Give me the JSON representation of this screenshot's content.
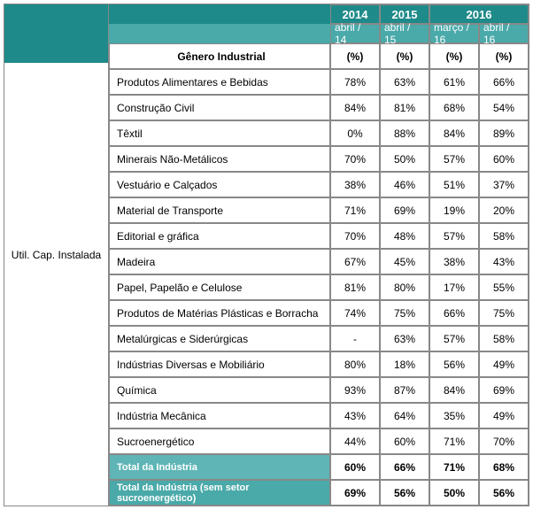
{
  "colors": {
    "teal_dark": "#1f8a8a",
    "teal_med": "#4aa9a9",
    "teal_light": "#5fb5b5",
    "border": "#888888",
    "bg": "#ffffff"
  },
  "side_label": "Util. Cap. Instalada",
  "years": {
    "y2014": "2014",
    "y2015": "2015",
    "y2016": "2016"
  },
  "months": {
    "m1": "abril / 14",
    "m2": "abril / 15",
    "m3": "março / 16",
    "m4": "abril / 16"
  },
  "header_row": {
    "label": "Gênero Industrial",
    "unit": "(%)"
  },
  "rows": [
    {
      "label": "Produtos Alimentares e Bebidas",
      "v1": "78%",
      "v2": "63%",
      "v3": "61%",
      "v4": "66%"
    },
    {
      "label": "Construção Civil",
      "v1": "84%",
      "v2": "81%",
      "v3": "68%",
      "v4": "54%"
    },
    {
      "label": "Têxtil",
      "v1": "0%",
      "v2": "88%",
      "v3": "84%",
      "v4": "89%"
    },
    {
      "label": "Minerais Não-Metálicos",
      "v1": "70%",
      "v2": "50%",
      "v3": "57%",
      "v4": "60%"
    },
    {
      "label": "Vestuário e Calçados",
      "v1": "38%",
      "v2": "46%",
      "v3": "51%",
      "v4": "37%"
    },
    {
      "label": "Material de Transporte",
      "v1": "71%",
      "v2": "69%",
      "v3": "19%",
      "v4": "20%"
    },
    {
      "label": "Editorial e gráfica",
      "v1": "70%",
      "v2": "48%",
      "v3": "57%",
      "v4": "58%"
    },
    {
      "label": "Madeira",
      "v1": "67%",
      "v2": "45%",
      "v3": "38%",
      "v4": "43%"
    },
    {
      "label": "Papel, Papelão e Celulose",
      "v1": "81%",
      "v2": "80%",
      "v3": "17%",
      "v4": "55%"
    },
    {
      "label": "Produtos de Matérias Plásticas e Borracha",
      "v1": "74%",
      "v2": "75%",
      "v3": "66%",
      "v4": "75%"
    },
    {
      "label": "Metalúrgicas e Siderúrgicas",
      "v1": "-",
      "v2": "63%",
      "v3": "57%",
      "v4": "58%"
    },
    {
      "label": "Indústrias Diversas e Mobiliário",
      "v1": "80%",
      "v2": "18%",
      "v3": "56%",
      "v4": "49%"
    },
    {
      "label": "Química",
      "v1": "93%",
      "v2": "87%",
      "v3": "84%",
      "v4": "69%"
    },
    {
      "label": "Indústria Mecânica",
      "v1": "43%",
      "v2": "64%",
      "v3": "35%",
      "v4": "49%"
    },
    {
      "label": "Sucroenergético",
      "v1": "44%",
      "v2": "60%",
      "v3": "71%",
      "v4": "70%"
    }
  ],
  "totals": [
    {
      "label": "Total da Indústria",
      "v1": "60%",
      "v2": "66%",
      "v3": "71%",
      "v4": "68%"
    },
    {
      "label": "Total da Indústria (sem setor sucroenergético)",
      "v1": "69%",
      "v2": "56%",
      "v3": "50%",
      "v4": "56%"
    }
  ],
  "col_widths": {
    "label": 250,
    "val": 56
  },
  "fonts": {
    "body": 12,
    "header": 13,
    "total_label": 11
  }
}
